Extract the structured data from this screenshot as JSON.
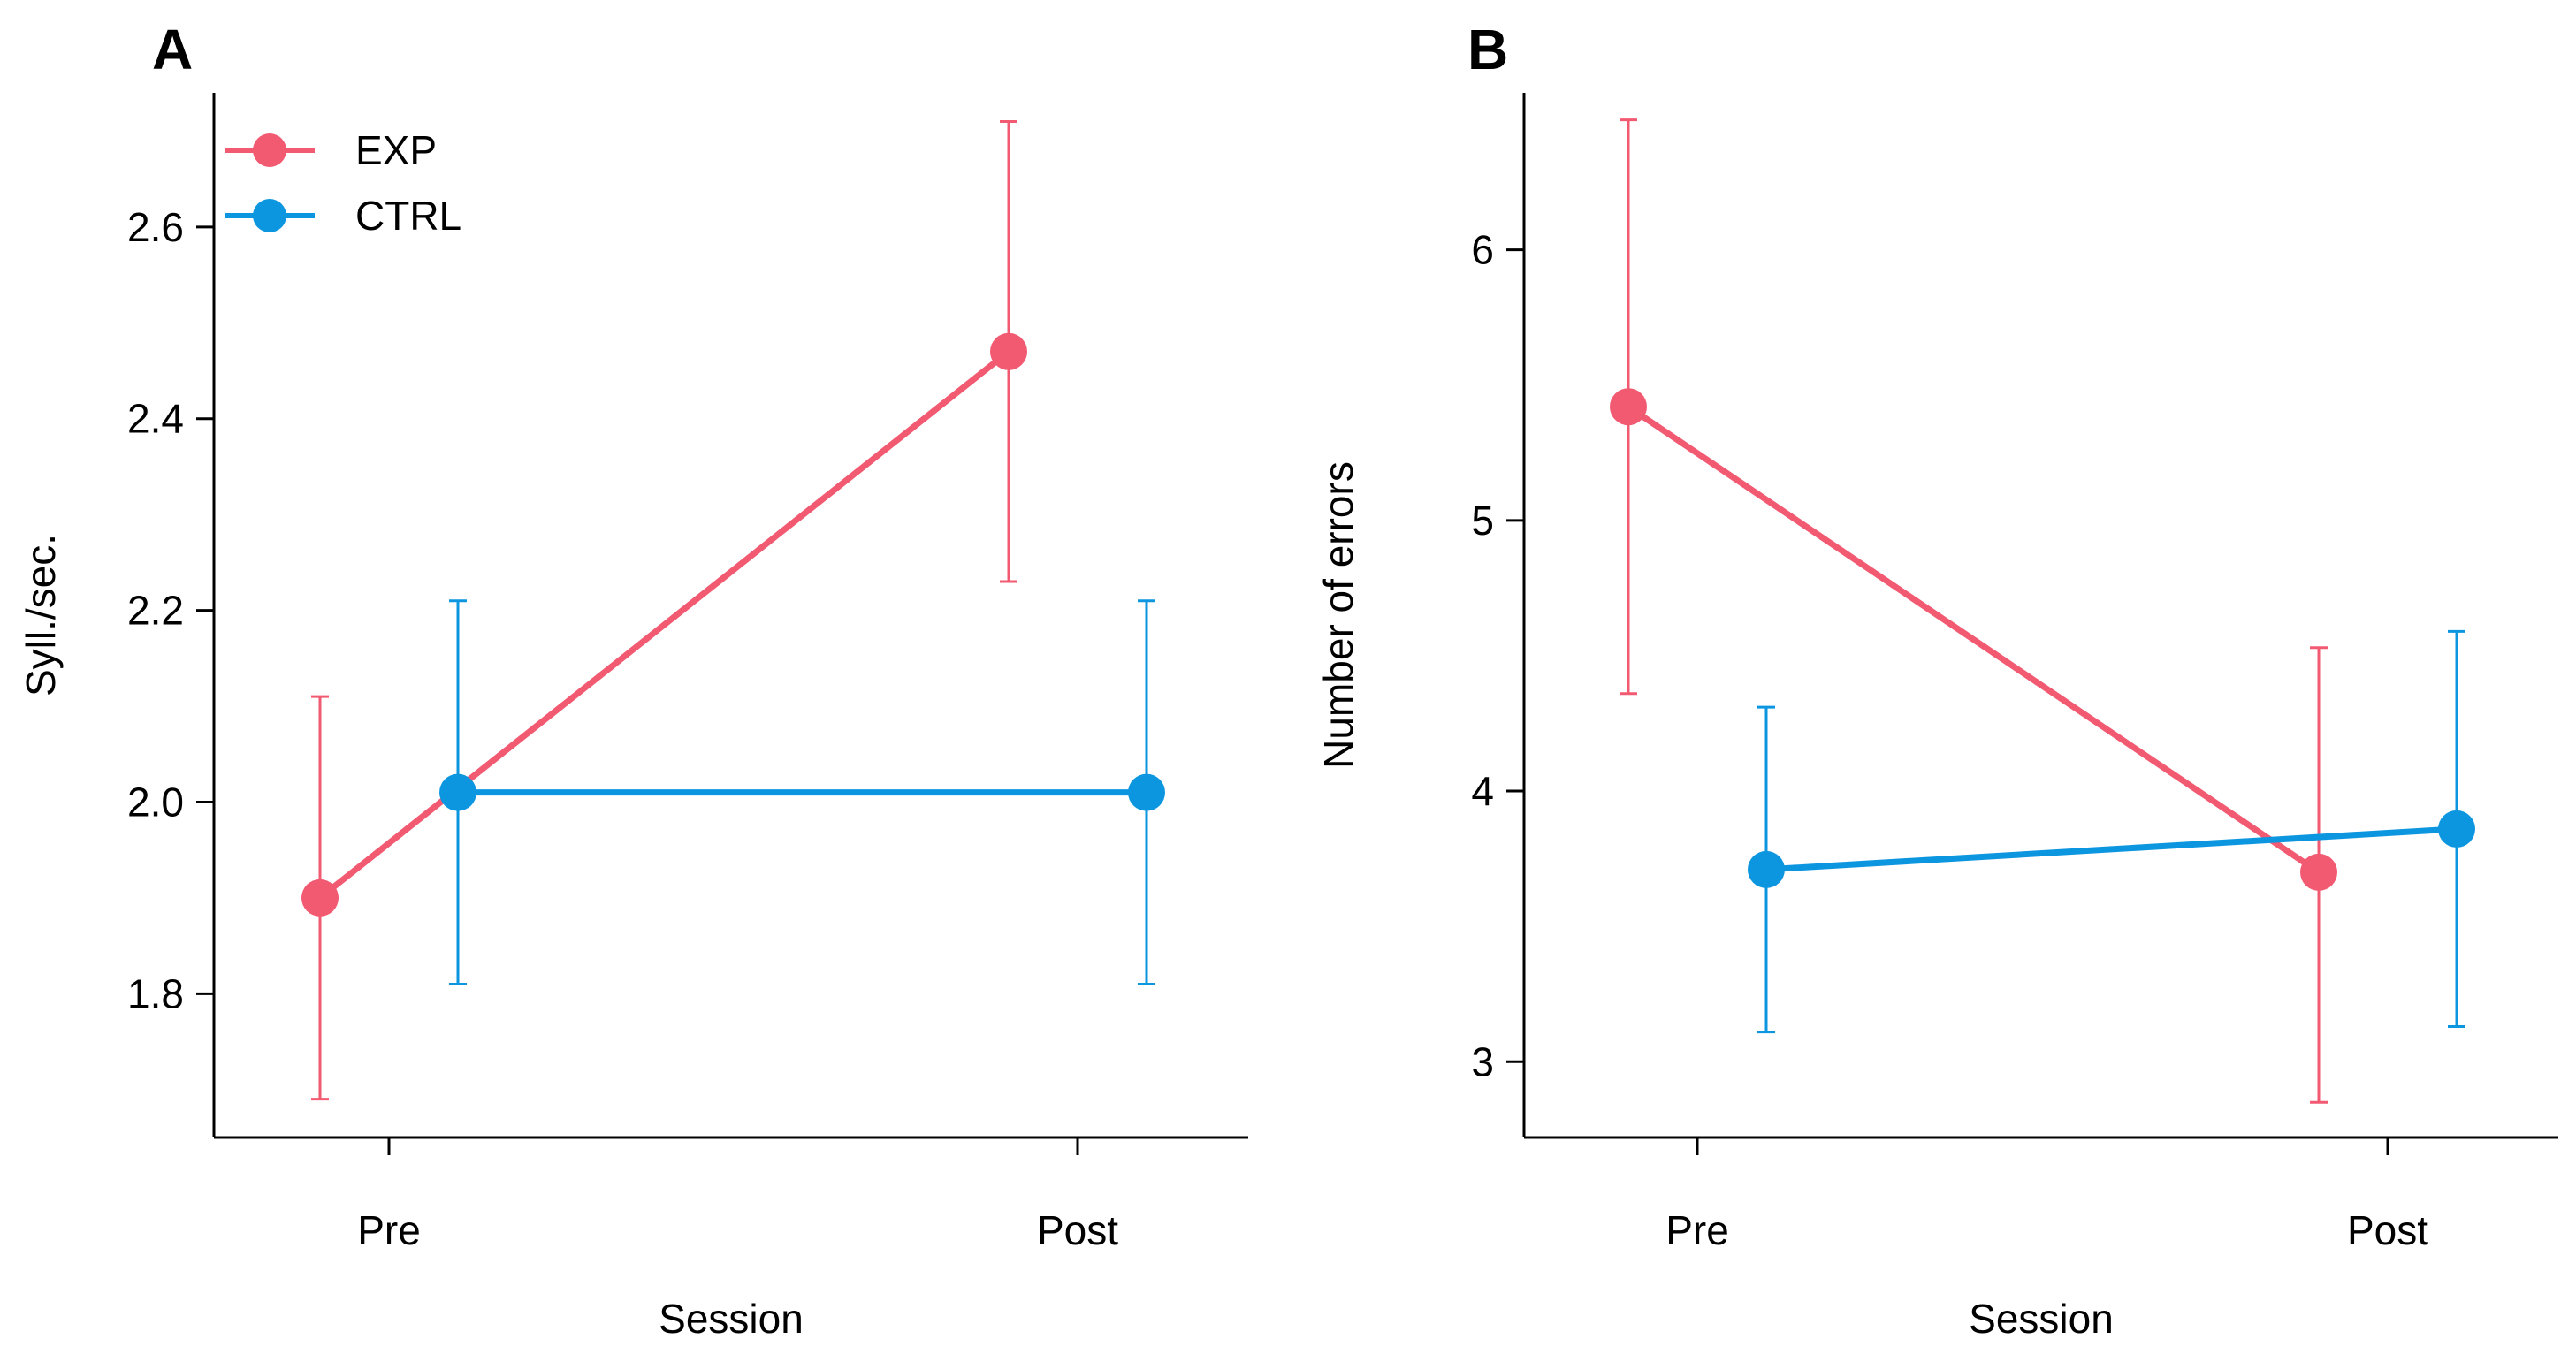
{
  "figure": {
    "legend": [
      {
        "label": "EXP",
        "color": "#F25A72"
      },
      {
        "label": "CTRL",
        "color": "#0D96E0"
      }
    ]
  },
  "chart_data": [
    {
      "type": "line",
      "panel_label": "A",
      "title": "",
      "xlabel": "Session",
      "ylabel": "Syll./sec.",
      "categories": [
        "Pre",
        "Post"
      ],
      "ylim": [
        1.65,
        2.74
      ],
      "yticks": [
        1.8,
        2.0,
        2.2,
        2.4,
        2.6
      ],
      "ytick_labels": [
        "1.8",
        "2.0",
        "2.2",
        "2.4",
        "2.6"
      ],
      "legend_position": "top-left",
      "series": [
        {
          "name": "EXP",
          "color": "#F25A72",
          "values": [
            1.9,
            2.47
          ],
          "lower": [
            1.69,
            2.23
          ],
          "upper": [
            2.11,
            2.71
          ]
        },
        {
          "name": "CTRL",
          "color": "#0D96E0",
          "values": [
            2.01,
            2.01
          ],
          "lower": [
            1.81,
            1.81
          ],
          "upper": [
            2.21,
            2.21
          ]
        }
      ]
    },
    {
      "type": "line",
      "panel_label": "B",
      "title": "",
      "xlabel": "Session",
      "ylabel": "Number of errors",
      "categories": [
        "Pre",
        "Post"
      ],
      "ylim": [
        2.72,
        6.58
      ],
      "yticks": [
        3,
        4,
        5,
        6
      ],
      "ytick_labels": [
        "3",
        "4",
        "5",
        "6"
      ],
      "series": [
        {
          "name": "EXP",
          "color": "#F25A72",
          "values": [
            5.42,
            3.7
          ],
          "lower": [
            4.36,
            2.85
          ],
          "upper": [
            6.48,
            4.53
          ]
        },
        {
          "name": "CTRL",
          "color": "#0D96E0",
          "values": [
            3.71,
            3.86
          ],
          "lower": [
            3.11,
            3.13
          ],
          "upper": [
            4.31,
            4.59
          ]
        }
      ]
    }
  ]
}
